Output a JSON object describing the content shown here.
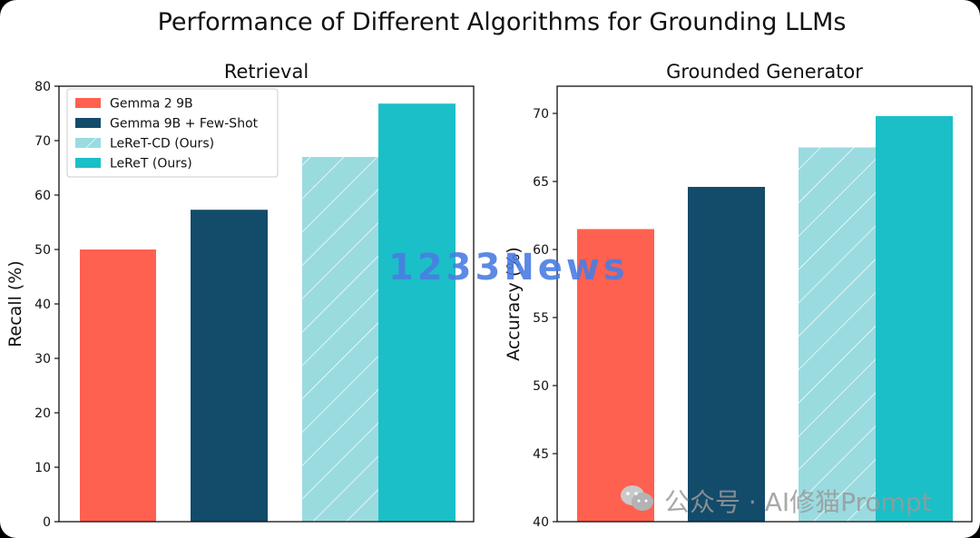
{
  "suptitle": "Performance of Different Algorithms for Grounding LLMs",
  "colors": {
    "gemma": "#ff6150",
    "fewshot": "#134b6b",
    "leret_cd": "#9adbe0",
    "leret": "#1bbfc7"
  },
  "chart_data": [
    {
      "type": "bar",
      "title": "Retrieval",
      "xlabel": "",
      "ylabel": "Recall (%)",
      "ylim": [
        0,
        80
      ],
      "yticks": [
        0,
        10,
        20,
        30,
        40,
        50,
        60,
        70,
        80
      ],
      "legend": "upper-left",
      "grid": false,
      "series": [
        {
          "name": "Gemma 2 9B",
          "value": 50,
          "color": "#ff6150",
          "hatch": false
        },
        {
          "name": "Gemma 9B + Few-Shot",
          "value": 57.3,
          "color": "#134b6b",
          "hatch": false
        },
        {
          "name": "LeReT-CD (Ours)",
          "value": 67,
          "color": "#9adbe0",
          "hatch": true
        },
        {
          "name": "LeReT (Ours)",
          "value": 76.8,
          "color": "#1bbfc7",
          "hatch": false
        }
      ]
    },
    {
      "type": "bar",
      "title": "Grounded Generator",
      "xlabel": "",
      "ylabel": "Accuracy (%)",
      "ylim": [
        40,
        72
      ],
      "yticks": [
        40,
        45,
        50,
        55,
        60,
        65,
        70
      ],
      "legend": "none",
      "grid": false,
      "series": [
        {
          "name": "Gemma 2 9B",
          "value": 61.5,
          "color": "#ff6150",
          "hatch": false
        },
        {
          "name": "Gemma 9B + Few-Shot",
          "value": 64.6,
          "color": "#134b6b",
          "hatch": false
        },
        {
          "name": "LeReT-CD (Ours)",
          "value": 67.5,
          "color": "#9adbe0",
          "hatch": true
        },
        {
          "name": "LeReT (Ours)",
          "value": 69.8,
          "color": "#1bbfc7",
          "hatch": false
        }
      ]
    }
  ],
  "watermarks": {
    "news": "1233News",
    "account": "公众号 · AI修猫Prompt"
  }
}
